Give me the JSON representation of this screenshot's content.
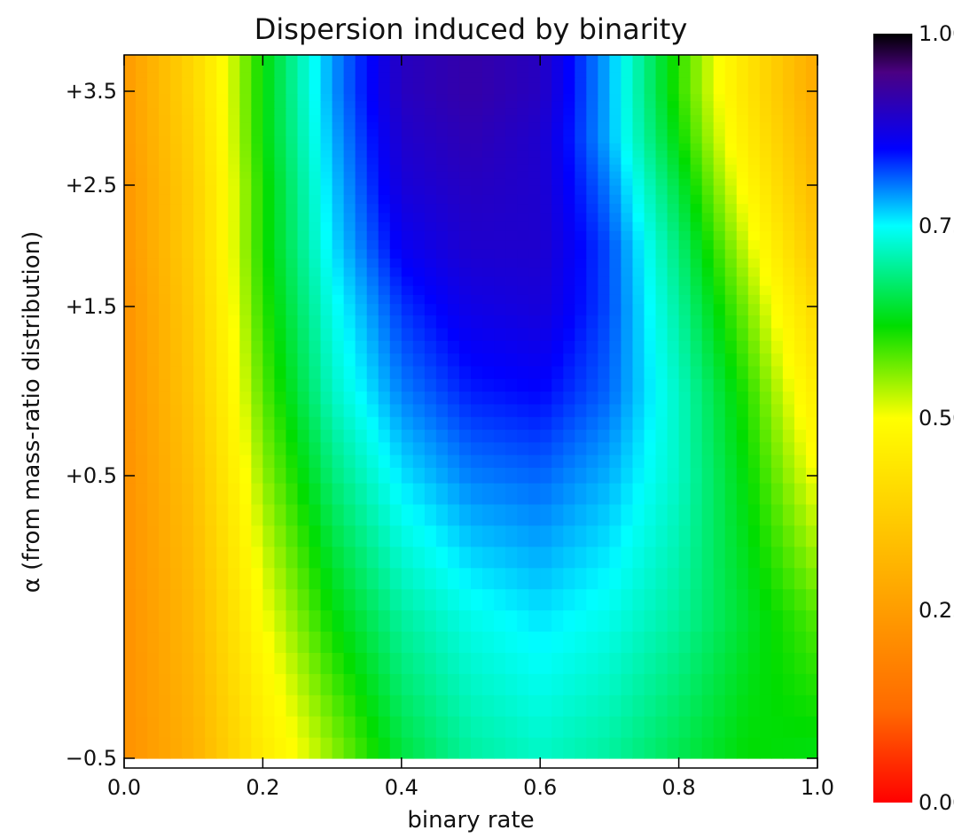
{
  "chart_data": {
    "type": "heatmap",
    "title": "Dispersion induced by binarity",
    "xlabel": "binary rate",
    "ylabel": "α (from mass-ratio distribution)",
    "xlim": [
      0.0,
      1.0
    ],
    "ylim": [
      -0.5,
      4.0
    ],
    "y_scale": "nonlinear",
    "x_ticks": [
      {
        "value": 0.0,
        "label": "0.0"
      },
      {
        "value": 0.2,
        "label": "0.2"
      },
      {
        "value": 0.4,
        "label": "0.4"
      },
      {
        "value": 0.6,
        "label": "0.6"
      },
      {
        "value": 0.8,
        "label": "0.8"
      },
      {
        "value": 1.0,
        "label": "1.0"
      }
    ],
    "y_ticks": [
      {
        "value": -0.5,
        "label": "−0.5"
      },
      {
        "value": 0.5,
        "label": "+0.5"
      },
      {
        "value": 1.5,
        "label": "+1.5"
      },
      {
        "value": 2.5,
        "label": "+2.5"
      },
      {
        "value": 3.5,
        "label": "+3.5"
      }
    ],
    "colorbar": {
      "min": 0.0,
      "max": 1.0,
      "colormap": "rainbow",
      "stops": [
        "#ff0000",
        "#ff6a00",
        "#ffff00",
        "#00dd00",
        "#00ffff",
        "#0000ff",
        "#4b0082",
        "#000000"
      ],
      "ticks": [
        {
          "value": 0.0,
          "label": "0.00"
        },
        {
          "value": 0.25,
          "label": "0.25"
        },
        {
          "value": 0.5,
          "label": "0.50"
        },
        {
          "value": 0.75,
          "label": "0.75"
        },
        {
          "value": 1.0,
          "label": "1.00"
        }
      ]
    },
    "x": [
      0.0,
      0.1,
      0.2,
      0.3,
      0.4,
      0.5,
      0.6,
      0.7,
      0.8,
      0.9,
      1.0
    ],
    "y": [
      -0.5,
      0.0,
      0.5,
      1.0,
      1.5,
      2.0,
      2.5,
      3.0,
      3.5
    ],
    "z": [
      [
        0.22,
        0.3,
        0.45,
        0.55,
        0.65,
        0.7,
        0.72,
        0.7,
        0.66,
        0.62,
        0.63
      ],
      [
        0.22,
        0.32,
        0.5,
        0.62,
        0.7,
        0.74,
        0.76,
        0.74,
        0.7,
        0.64,
        0.58
      ],
      [
        0.22,
        0.34,
        0.55,
        0.68,
        0.76,
        0.8,
        0.81,
        0.78,
        0.72,
        0.62,
        0.5
      ],
      [
        0.22,
        0.36,
        0.58,
        0.72,
        0.8,
        0.84,
        0.85,
        0.81,
        0.72,
        0.6,
        0.45
      ],
      [
        0.22,
        0.37,
        0.6,
        0.74,
        0.83,
        0.87,
        0.88,
        0.82,
        0.7,
        0.56,
        0.4
      ],
      [
        0.23,
        0.38,
        0.61,
        0.76,
        0.86,
        0.89,
        0.89,
        0.82,
        0.68,
        0.52,
        0.35
      ],
      [
        0.23,
        0.38,
        0.61,
        0.77,
        0.88,
        0.9,
        0.89,
        0.8,
        0.65,
        0.48,
        0.32
      ],
      [
        0.24,
        0.39,
        0.62,
        0.78,
        0.89,
        0.91,
        0.89,
        0.78,
        0.62,
        0.45,
        0.3
      ],
      [
        0.24,
        0.4,
        0.62,
        0.79,
        0.9,
        0.92,
        0.9,
        0.78,
        0.6,
        0.43,
        0.28
      ]
    ]
  }
}
